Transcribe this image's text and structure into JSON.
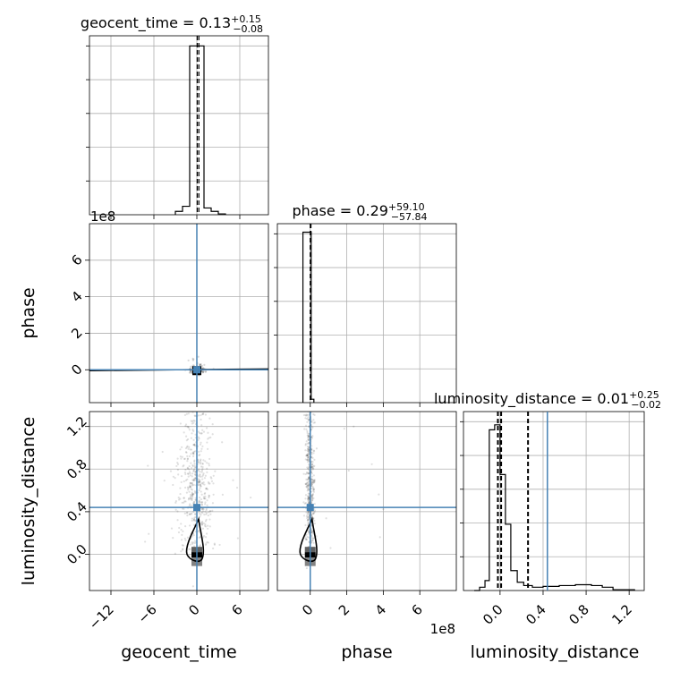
{
  "chart_data": {
    "type": "corner",
    "params": [
      "geocent_time",
      "phase",
      "luminosity_distance"
    ],
    "axis_labels": {
      "geocent_time": "geocent_time",
      "phase": "phase",
      "luminosity_distance": "luminosity_distance"
    },
    "truth_color": "#4682b4",
    "truths": {
      "geocent_time": 0.0,
      "phase": 0.0,
      "luminosity_distance": 0.44
    },
    "titles": [
      {
        "name": "geocent_time",
        "median": "0.13",
        "plus": "+0.15",
        "minus": "−0.08"
      },
      {
        "name": "phase",
        "median": "0.29",
        "plus": "+59.10",
        "minus": "−57.84"
      },
      {
        "name": "luminosity_distance",
        "median": "0.01",
        "plus": "+0.25",
        "minus": "−0.02"
      }
    ],
    "offset_texts": [
      "1e8",
      "1e8"
    ],
    "ranges": {
      "geocent_time": [
        -15,
        10
      ],
      "phase": [
        -1.8,
        8.0
      ],
      "luminosity_distance": [
        -0.34,
        1.34
      ]
    },
    "ticks": {
      "geocent_time": {
        "values": [
          -12,
          -6,
          0,
          6
        ],
        "labels": [
          "−12",
          "−6",
          "0",
          "6"
        ]
      },
      "phase": {
        "values": [
          0,
          2,
          4,
          6
        ],
        "labels": [
          "0",
          "2",
          "4",
          "6"
        ]
      },
      "luminosity_distance": {
        "values": [
          0.0,
          0.4,
          0.8,
          1.2
        ],
        "labels": [
          "0.0",
          "0.4",
          "0.8",
          "1.2"
        ]
      }
    },
    "histograms": {
      "geocent_time": {
        "edges": [
          -3,
          -2,
          -1,
          0,
          1,
          2,
          3,
          4
        ],
        "counts": [
          0.02,
          0.05,
          1.0,
          1.0,
          0.04,
          0.02,
          0.005
        ],
        "quantile_lines": [
          0.05,
          0.28
        ],
        "ymax": 1.06
      },
      "phase": {
        "edges": [
          -0.4,
          0.05,
          0.2
        ],
        "counts": [
          1.0,
          0.02
        ],
        "quantile_lines": [
          0.0,
          0.04
        ],
        "ymax": 1.05
      },
      "luminosity_distance": {
        "edges": [
          -0.24,
          -0.19,
          -0.14,
          -0.1,
          -0.05,
          0.0,
          0.05,
          0.1,
          0.16,
          0.22,
          0.3,
          0.4,
          0.55,
          0.7,
          0.85,
          0.95,
          1.05,
          1.15,
          1.25
        ],
        "counts": [
          0.0,
          0.02,
          0.06,
          0.97,
          1.0,
          0.7,
          0.4,
          0.12,
          0.05,
          0.03,
          0.02,
          0.025,
          0.03,
          0.035,
          0.03,
          0.02,
          0.005,
          0.005
        ],
        "quantile_lines": [
          -0.02,
          0.01,
          0.26
        ],
        "ymax": 1.08
      }
    },
    "grid": true
  }
}
